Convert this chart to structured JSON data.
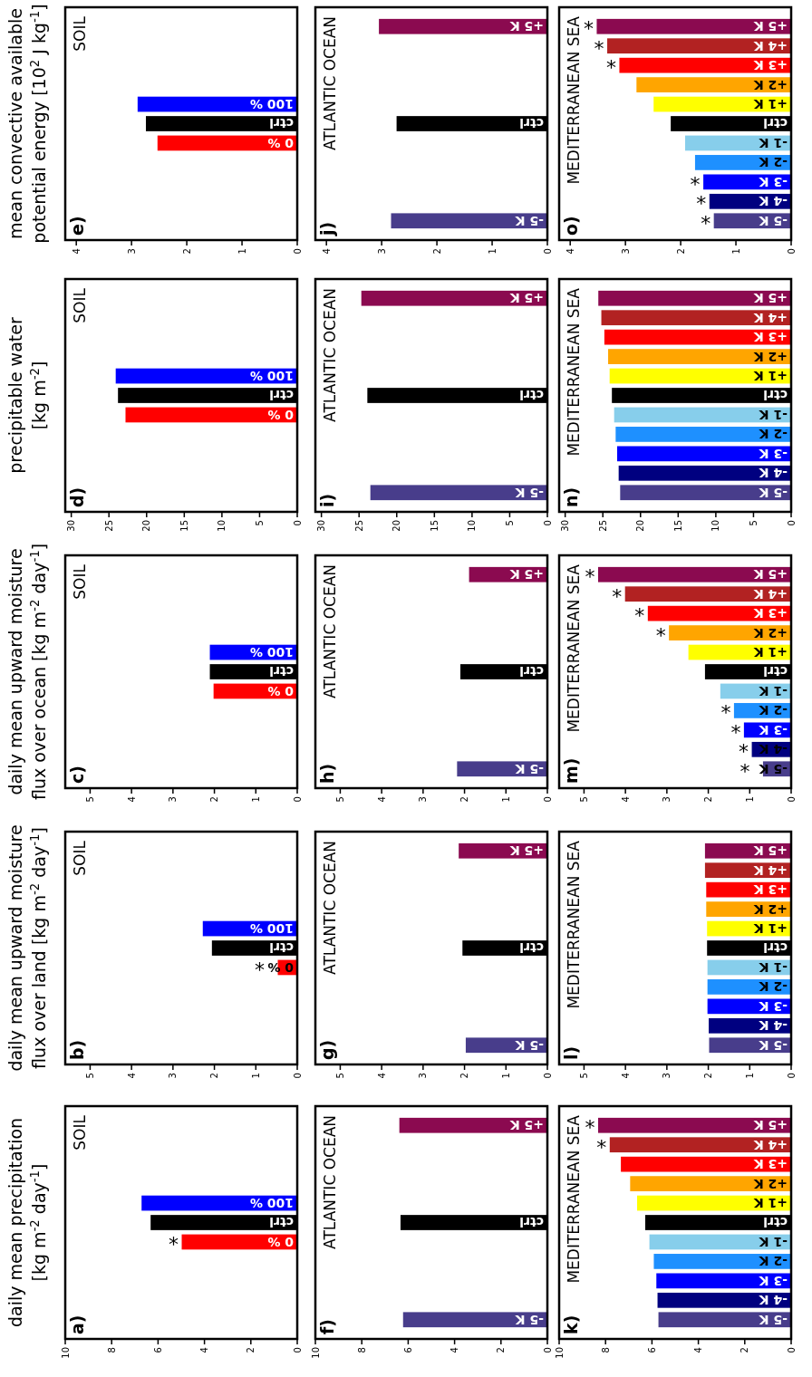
{
  "chart_data": [
    {
      "type": "bar",
      "orientation": "horizontal",
      "title": "a)",
      "subtitle": "SOIL",
      "ylabel": "daily mean precipitation\n[kg m$^{-2}$ day$^{-1}$]",
      "categories": [
        null,
        null,
        null,
        null,
        "100 %",
        "ctrl",
        "0 %",
        null,
        null,
        null,
        null
      ],
      "values": [
        null,
        null,
        null,
        null,
        6.71,
        6.32,
        4.98,
        null,
        null,
        null,
        null
      ],
      "colors": [
        null,
        null,
        null,
        null,
        "#0000ff",
        "#000000",
        "#ff0000",
        null,
        null,
        null,
        null
      ],
      "xlim": [
        10,
        0
      ],
      "xticks": [
        10,
        8,
        6,
        4,
        2,
        0
      ],
      "annotations": [
        {
          "text": "*",
          "x": 4.98,
          "y": "0 %"
        }
      ]
    },
    {
      "type": "bar",
      "orientation": "horizontal",
      "title": "b)",
      "subtitle": "SOIL",
      "ylabel": "daily mean upward moisture\nflux over land [kg m$^{-2}$ day$^{-1}$]",
      "categories": [
        null,
        null,
        null,
        null,
        "100 %",
        "ctrl",
        "0 %",
        null,
        null,
        null,
        null
      ],
      "values": [
        null,
        null,
        null,
        null,
        2.28,
        2.06,
        0.47,
        null,
        null,
        null,
        null
      ],
      "colors": [
        null,
        null,
        null,
        null,
        "#0000ff",
        "#000000",
        "#ff0000",
        null,
        null,
        null,
        null
      ],
      "xlim": [
        5.6,
        0
      ],
      "xticks": [
        5,
        4,
        3,
        2,
        1,
        0
      ],
      "annotations": [
        {
          "text": "*",
          "x": 0.47,
          "y": "0 %"
        }
      ]
    },
    {
      "type": "bar",
      "orientation": "horizontal",
      "title": "c)",
      "subtitle": "SOIL",
      "ylabel": "daily mean upward moisture\nflux over ocean [kg m$^{-2}$ day$^{-1}$]",
      "categories": [
        null,
        null,
        null,
        null,
        "100 %",
        "ctrl",
        "0 %",
        null,
        null,
        null,
        null
      ],
      "values": [
        null,
        null,
        null,
        null,
        2.11,
        2.11,
        2.02,
        null,
        null,
        null,
        null
      ],
      "colors": [
        null,
        null,
        null,
        null,
        "#0000ff",
        "#000000",
        "#ff0000",
        null,
        null,
        null,
        null
      ],
      "xlim": [
        5.6,
        0
      ],
      "xticks": [
        5,
        4,
        3,
        2,
        1,
        0
      ]
    },
    {
      "type": "bar",
      "orientation": "horizontal",
      "title": "d)",
      "subtitle": "SOIL",
      "ylabel": "precipitable water\n[kg m$^{-2}$]",
      "categories": [
        null,
        null,
        null,
        null,
        "100 %",
        "ctrl",
        "0 %",
        null,
        null,
        null,
        null
      ],
      "values": [
        null,
        null,
        null,
        null,
        24.1,
        23.8,
        22.8,
        null,
        null,
        null,
        null
      ],
      "colors": [
        null,
        null,
        null,
        null,
        "#0000ff",
        "#000000",
        "#ff0000",
        null,
        null,
        null,
        null
      ],
      "xlim": [
        30.8,
        0
      ],
      "xticks": [
        30,
        25,
        20,
        15,
        10,
        5,
        0
      ]
    },
    {
      "type": "bar",
      "orientation": "horizontal",
      "title": "e)",
      "subtitle": "SOIL",
      "ylabel": "mean convective available\npotential energy [10$^{2}$ J kg$^{-1}$]",
      "categories": [
        null,
        null,
        null,
        null,
        "100 %",
        "ctrl",
        "0 %",
        null,
        null,
        null,
        null
      ],
      "values": [
        null,
        null,
        null,
        null,
        2.89,
        2.74,
        2.53,
        null,
        null,
        null,
        null
      ],
      "colors": [
        null,
        null,
        null,
        null,
        "#0000ff",
        "#000000",
        "#ff0000",
        null,
        null,
        null,
        null
      ],
      "xlim": [
        4.2,
        0
      ],
      "xticks": [
        4,
        3,
        2,
        1,
        0
      ]
    },
    {
      "type": "bar",
      "orientation": "horizontal",
      "title": "f)",
      "subtitle": "ATLANTIC OCEAN",
      "categories": [
        "+5 K",
        null,
        null,
        null,
        null,
        "ctrl",
        null,
        null,
        null,
        null,
        "-5 K"
      ],
      "values": [
        6.38,
        null,
        null,
        null,
        null,
        6.33,
        null,
        null,
        null,
        null,
        6.22
      ],
      "colors": [
        "#8b0a50",
        null,
        null,
        null,
        null,
        "#000000",
        null,
        null,
        null,
        null,
        "#483d8b"
      ],
      "xlim": [
        10,
        0
      ],
      "xticks": [
        10,
        8,
        6,
        4,
        2,
        0
      ]
    },
    {
      "type": "bar",
      "orientation": "horizontal",
      "title": "g)",
      "subtitle": "ATLANTIC OCEAN",
      "categories": [
        "+5 K",
        null,
        null,
        null,
        null,
        "ctrl",
        null,
        null,
        null,
        null,
        "-5 K"
      ],
      "values": [
        2.14,
        null,
        null,
        null,
        null,
        2.05,
        null,
        null,
        null,
        null,
        1.97
      ],
      "colors": [
        "#8b0a50",
        null,
        null,
        null,
        null,
        "#000000",
        null,
        null,
        null,
        null,
        "#483d8b"
      ],
      "xlim": [
        5.6,
        0
      ],
      "xticks": [
        5,
        4,
        3,
        2,
        1,
        0
      ]
    },
    {
      "type": "bar",
      "orientation": "horizontal",
      "title": "h)",
      "subtitle": "ATLANTIC OCEAN",
      "categories": [
        "+5 K",
        null,
        null,
        null,
        null,
        "ctrl",
        null,
        null,
        null,
        null,
        "-5 K"
      ],
      "values": [
        1.89,
        null,
        null,
        null,
        null,
        2.1,
        null,
        null,
        null,
        null,
        2.18
      ],
      "colors": [
        "#8b0a50",
        null,
        null,
        null,
        null,
        "#000000",
        null,
        null,
        null,
        null,
        "#483d8b"
      ],
      "xlim": [
        5.6,
        0
      ],
      "xticks": [
        5,
        4,
        3,
        2,
        1,
        0
      ]
    },
    {
      "type": "bar",
      "orientation": "horizontal",
      "title": "i)",
      "subtitle": "ATLANTIC OCEAN",
      "categories": [
        "+5 K",
        null,
        null,
        null,
        null,
        "ctrl",
        null,
        null,
        null,
        null,
        "-5 K"
      ],
      "values": [
        24.7,
        null,
        null,
        null,
        null,
        23.9,
        null,
        null,
        null,
        null,
        23.5
      ],
      "colors": [
        "#8b0a50",
        null,
        null,
        null,
        null,
        "#000000",
        null,
        null,
        null,
        null,
        "#483d8b"
      ],
      "xlim": [
        30.8,
        0
      ],
      "xticks": [
        30,
        25,
        20,
        15,
        10,
        5,
        0
      ]
    },
    {
      "type": "bar",
      "orientation": "horizontal",
      "title": "j)",
      "subtitle": "ATLANTIC OCEAN",
      "categories": [
        "+5 K",
        null,
        null,
        null,
        null,
        "ctrl",
        null,
        null,
        null,
        null,
        "-5 K"
      ],
      "values": [
        3.05,
        null,
        null,
        null,
        null,
        2.73,
        null,
        null,
        null,
        null,
        2.83
      ],
      "colors": [
        "#8b0a50",
        null,
        null,
        null,
        null,
        "#000000",
        null,
        null,
        null,
        null,
        "#483d8b"
      ],
      "xlim": [
        4.2,
        0
      ],
      "xticks": [
        4,
        3,
        2,
        1,
        0
      ]
    },
    {
      "type": "bar",
      "orientation": "horizontal",
      "title": "k)",
      "subtitle": "MEDITERRANEAN SEA",
      "categories": [
        "+5 K",
        "+4 K",
        "+3 K",
        "+2 K",
        "+1 K",
        "ctrl",
        "-1 K",
        "-2 K",
        "-3 K",
        "-4 K",
        "-5 K"
      ],
      "values": [
        8.32,
        7.82,
        7.34,
        6.94,
        6.64,
        6.29,
        6.11,
        5.92,
        5.81,
        5.76,
        5.72
      ],
      "colors": [
        "#8b0a50",
        "#b22222",
        "#ff0000",
        "#ffa500",
        "#ffff00",
        "#000000",
        "#87ceeb",
        "#1e90ff",
        "#0000ff",
        "#000080",
        "#483d8b"
      ],
      "xlim": [
        10,
        0
      ],
      "xticks": [
        10,
        8,
        6,
        4,
        2,
        0
      ],
      "annotations": [
        {
          "text": "*",
          "x": 7.82,
          "y": "+4 K"
        },
        {
          "text": "*",
          "x": 8.32,
          "y": "+5 K"
        }
      ]
    },
    {
      "type": "bar",
      "orientation": "horizontal",
      "title": "l)",
      "subtitle": "MEDITERRANEAN SEA",
      "categories": [
        "+5 K",
        "+4 K",
        "+3 K",
        "+2 K",
        "+1 K",
        "ctrl",
        "-1 K",
        "-2 K",
        "-3 K",
        "-4 K",
        "-5 K"
      ],
      "values": [
        2.08,
        2.08,
        2.05,
        2.05,
        2.03,
        2.03,
        2.02,
        2.02,
        2.02,
        1.99,
        1.98
      ],
      "colors": [
        "#8b0a50",
        "#b22222",
        "#ff0000",
        "#ffa500",
        "#ffff00",
        "#000000",
        "#87ceeb",
        "#1e90ff",
        "#0000ff",
        "#000080",
        "#483d8b"
      ],
      "xlim": [
        5.6,
        0
      ],
      "xticks": [
        5,
        4,
        3,
        2,
        1,
        0
      ]
    },
    {
      "type": "bar",
      "orientation": "horizontal",
      "title": "m)",
      "subtitle": "MEDITERRANEAN SEA",
      "categories": [
        "+5 K",
        "+4 K",
        "+3 K",
        "+2 K",
        "+1 K",
        "ctrl",
        "-1 K",
        "-2 K",
        "-3 K",
        "-4 K",
        "-5 K"
      ],
      "values": [
        4.66,
        4.01,
        3.46,
        2.95,
        2.48,
        2.08,
        1.71,
        1.38,
        1.14,
        0.95,
        0.68
      ],
      "colors": [
        "#8b0a50",
        "#b22222",
        "#ff0000",
        "#ffa500",
        "#ffff00",
        "#000000",
        "#87ceeb",
        "#1e90ff",
        "#0000ff",
        "#000080",
        "#483d8b"
      ],
      "xlim": [
        5.6,
        0
      ],
      "xticks": [
        5,
        4,
        3,
        2,
        1,
        0
      ],
      "annotations": [
        {
          "text": "*",
          "x": 0.68,
          "y": "-5 K"
        },
        {
          "text": "*",
          "x": 0.95,
          "y": "-4 K"
        },
        {
          "text": "*",
          "x": 1.14,
          "y": "-3 K"
        },
        {
          "text": "*",
          "x": 1.38,
          "y": "-2 K"
        },
        {
          "text": "*",
          "x": 2.95,
          "y": "+2 K"
        },
        {
          "text": "*",
          "x": 3.46,
          "y": "+3 K"
        },
        {
          "text": "*",
          "x": 4.01,
          "y": "+4 K"
        },
        {
          "text": "*",
          "x": 4.66,
          "y": "+5 K"
        }
      ]
    },
    {
      "type": "bar",
      "orientation": "horizontal",
      "title": "n)",
      "subtitle": "MEDITERRANEAN SEA",
      "categories": [
        "+5 K",
        "+4 K",
        "+3 K",
        "+2 K",
        "+1 K",
        "ctrl",
        "-1 K",
        "-2 K",
        "-3 K",
        "-4 K",
        "-5 K"
      ],
      "values": [
        25.6,
        25.2,
        24.8,
        24.3,
        24.1,
        23.8,
        23.5,
        23.3,
        23.1,
        22.9,
        22.7
      ],
      "colors": [
        "#8b0a50",
        "#b22222",
        "#ff0000",
        "#ffa500",
        "#ffff00",
        "#000000",
        "#87ceeb",
        "#1e90ff",
        "#0000ff",
        "#000080",
        "#483d8b"
      ],
      "xlim": [
        30.8,
        0
      ],
      "xticks": [
        30,
        25,
        20,
        15,
        10,
        5,
        0
      ]
    },
    {
      "type": "bar",
      "orientation": "horizontal",
      "title": "o)",
      "subtitle": "MEDITERRANEAN SEA",
      "categories": [
        "+5 K",
        "+4 K",
        "+3 K",
        "+2 K",
        "+1 K",
        "ctrl",
        "-1 K",
        "-2 K",
        "-3 K",
        "-4 K",
        "-5 K"
      ],
      "values": [
        3.52,
        3.33,
        3.11,
        2.8,
        2.49,
        2.18,
        1.92,
        1.74,
        1.59,
        1.48,
        1.4
      ],
      "colors": [
        "#8b0a50",
        "#b22222",
        "#ff0000",
        "#ffa500",
        "#ffff00",
        "#000000",
        "#87ceeb",
        "#1e90ff",
        "#0000ff",
        "#000080",
        "#483d8b"
      ],
      "xlim": [
        4.2,
        0
      ],
      "xticks": [
        4,
        3,
        2,
        1,
        0
      ],
      "annotations": [
        {
          "text": "*",
          "x": 1.4,
          "y": "-5 K"
        },
        {
          "text": "*",
          "x": 1.48,
          "y": "-4 K"
        },
        {
          "text": "*",
          "x": 1.59,
          "y": "-3 K"
        },
        {
          "text": "*",
          "x": 3.11,
          "y": "+3 K"
        },
        {
          "text": "*",
          "x": 3.33,
          "y": "+4 K"
        },
        {
          "text": "*",
          "x": 3.52,
          "y": "+5 K"
        }
      ]
    }
  ]
}
